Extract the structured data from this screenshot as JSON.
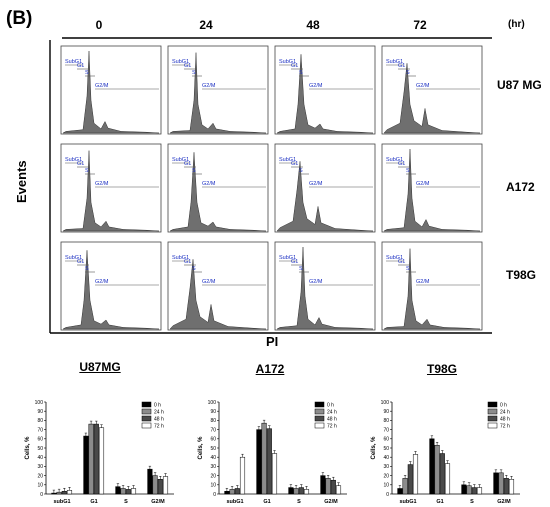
{
  "panel_label": "(B)",
  "time_unit": "(hr)",
  "time_points": [
    "0",
    "24",
    "48",
    "72"
  ],
  "cell_lines": [
    "U87 MG",
    "A172",
    "T98G"
  ],
  "flow_axis": {
    "y_title": "Events",
    "x_title": "PI"
  },
  "histogram_gate_labels": [
    "SubG1",
    "G1",
    "S",
    "G2/M"
  ],
  "colors": {
    "histogram_fill": "#6f6f6f",
    "gate_text": "#1a2ec2"
  },
  "chart_data": [
    {
      "type": "bar",
      "title": "U87MG",
      "categories": [
        "subG1",
        "G1",
        "S",
        "G2/M"
      ],
      "ylabel": "Cells, %",
      "ylim": [
        0,
        100
      ],
      "yticks": [
        0,
        10,
        20,
        30,
        40,
        50,
        60,
        70,
        80,
        90,
        100
      ],
      "legend_position": "top-right",
      "series": [
        {
          "name": "0 h",
          "color": "#000000",
          "values": [
            1,
            63,
            8,
            27
          ]
        },
        {
          "name": "24 h",
          "color": "#8c8c8c",
          "values": [
            2,
            76,
            6,
            20
          ]
        },
        {
          "name": "48 h",
          "color": "#4a4a4a",
          "values": [
            3,
            76,
            5,
            16
          ]
        },
        {
          "name": "72 h",
          "color": "#ffffff",
          "values": [
            4,
            72,
            6,
            19
          ]
        }
      ]
    },
    {
      "type": "bar",
      "title": "A172",
      "categories": [
        "subG1",
        "G1",
        "S",
        "G2/M"
      ],
      "ylabel": "Cells, %",
      "ylim": [
        0,
        100
      ],
      "yticks": [
        0,
        10,
        20,
        30,
        40,
        50,
        60,
        70,
        80,
        90,
        100
      ],
      "legend_position": "top-right",
      "series": [
        {
          "name": "0 h",
          "color": "#000000",
          "values": [
            3,
            70,
            7,
            20
          ]
        },
        {
          "name": "24 h",
          "color": "#8c8c8c",
          "values": [
            5,
            77,
            6,
            17
          ]
        },
        {
          "name": "48 h",
          "color": "#4a4a4a",
          "values": [
            6,
            71,
            7,
            15
          ]
        },
        {
          "name": "72 h",
          "color": "#ffffff",
          "values": [
            40,
            44,
            5,
            9
          ]
        }
      ]
    },
    {
      "type": "bar",
      "title": "T98G",
      "categories": [
        "subG1",
        "G1",
        "S",
        "G2/M"
      ],
      "ylabel": "Cells, %",
      "ylim": [
        0,
        100
      ],
      "yticks": [
        0,
        10,
        20,
        30,
        40,
        50,
        60,
        70,
        80,
        90,
        100
      ],
      "legend_position": "top-right",
      "series": [
        {
          "name": "0 h",
          "color": "#000000",
          "values": [
            6,
            60,
            10,
            23
          ]
        },
        {
          "name": "24 h",
          "color": "#8c8c8c",
          "values": [
            17,
            53,
            9,
            23
          ]
        },
        {
          "name": "48 h",
          "color": "#4a4a4a",
          "values": [
            32,
            44,
            7,
            17
          ]
        },
        {
          "name": "72 h",
          "color": "#ffffff",
          "values": [
            43,
            33,
            7,
            16
          ]
        }
      ]
    }
  ]
}
